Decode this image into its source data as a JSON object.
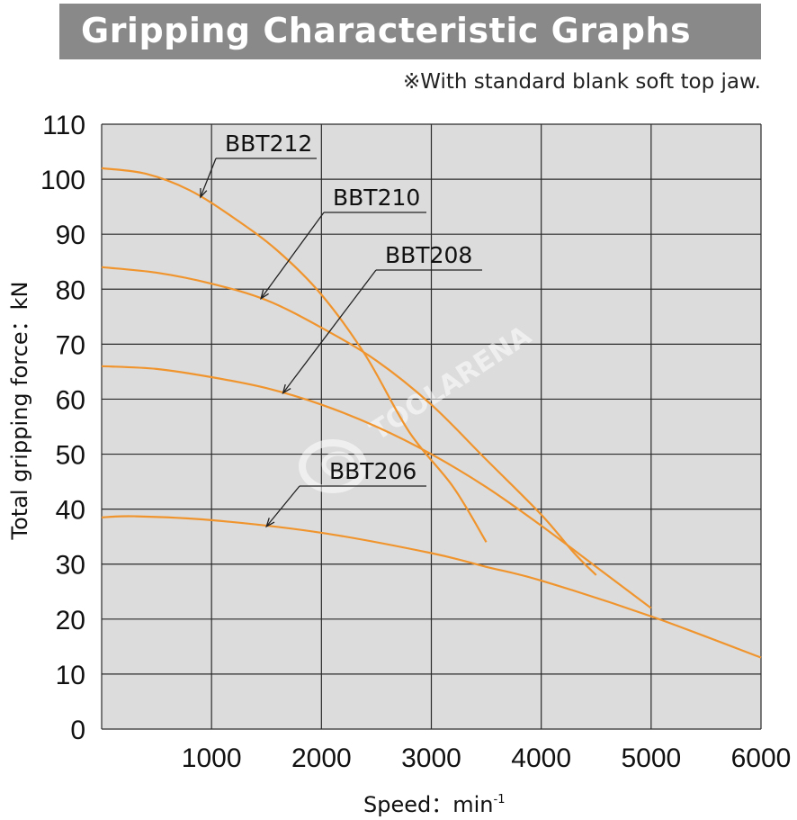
{
  "header": {
    "title": "Gripping Characteristic Graphs",
    "note": "※With standard blank soft top jaw."
  },
  "watermark": "TOOLARENA",
  "colors": {
    "curve": "#f0952e",
    "plot_bg": "#dcdcdc",
    "grid": "#2a2a2a",
    "title_bg": "#898989"
  },
  "chart_data": {
    "type": "line",
    "xlabel": "Speed：min",
    "xlabel_sup": "-1",
    "ylabel": "Total gripping force：kN",
    "xlim": [
      0,
      6000
    ],
    "ylim": [
      0,
      110
    ],
    "xticks": [
      1000,
      2000,
      3000,
      4000,
      5000,
      6000
    ],
    "yticks": [
      0,
      10,
      20,
      30,
      40,
      50,
      60,
      70,
      80,
      90,
      100,
      110
    ],
    "grid": true,
    "series": [
      {
        "name": "BBT212",
        "x": [
          0,
          400,
          800,
          1200,
          1600,
          2000,
          2400,
          2800,
          3200,
          3500
        ],
        "y": [
          102,
          101,
          98,
          93,
          87,
          79,
          68,
          54,
          44,
          34
        ]
      },
      {
        "name": "BBT210",
        "x": [
          0,
          500,
          1000,
          1500,
          2000,
          2500,
          3000,
          3500,
          4000,
          4300,
          4500
        ],
        "y": [
          84,
          83,
          81,
          78,
          73,
          67,
          59,
          49,
          39,
          32,
          28
        ]
      },
      {
        "name": "BBT208",
        "x": [
          0,
          500,
          1000,
          1500,
          2000,
          2500,
          3000,
          3500,
          4000,
          4500,
          5000
        ],
        "y": [
          66,
          65.5,
          64,
          62,
          59,
          55,
          50,
          44,
          37,
          29.5,
          22
        ]
      },
      {
        "name": "BBT206",
        "x": [
          0,
          300,
          1000,
          2000,
          3000,
          3500,
          4000,
          5000,
          6000
        ],
        "y": [
          38.5,
          38.7,
          38,
          35.7,
          32,
          29.5,
          27,
          20.5,
          13
        ]
      }
    ]
  }
}
